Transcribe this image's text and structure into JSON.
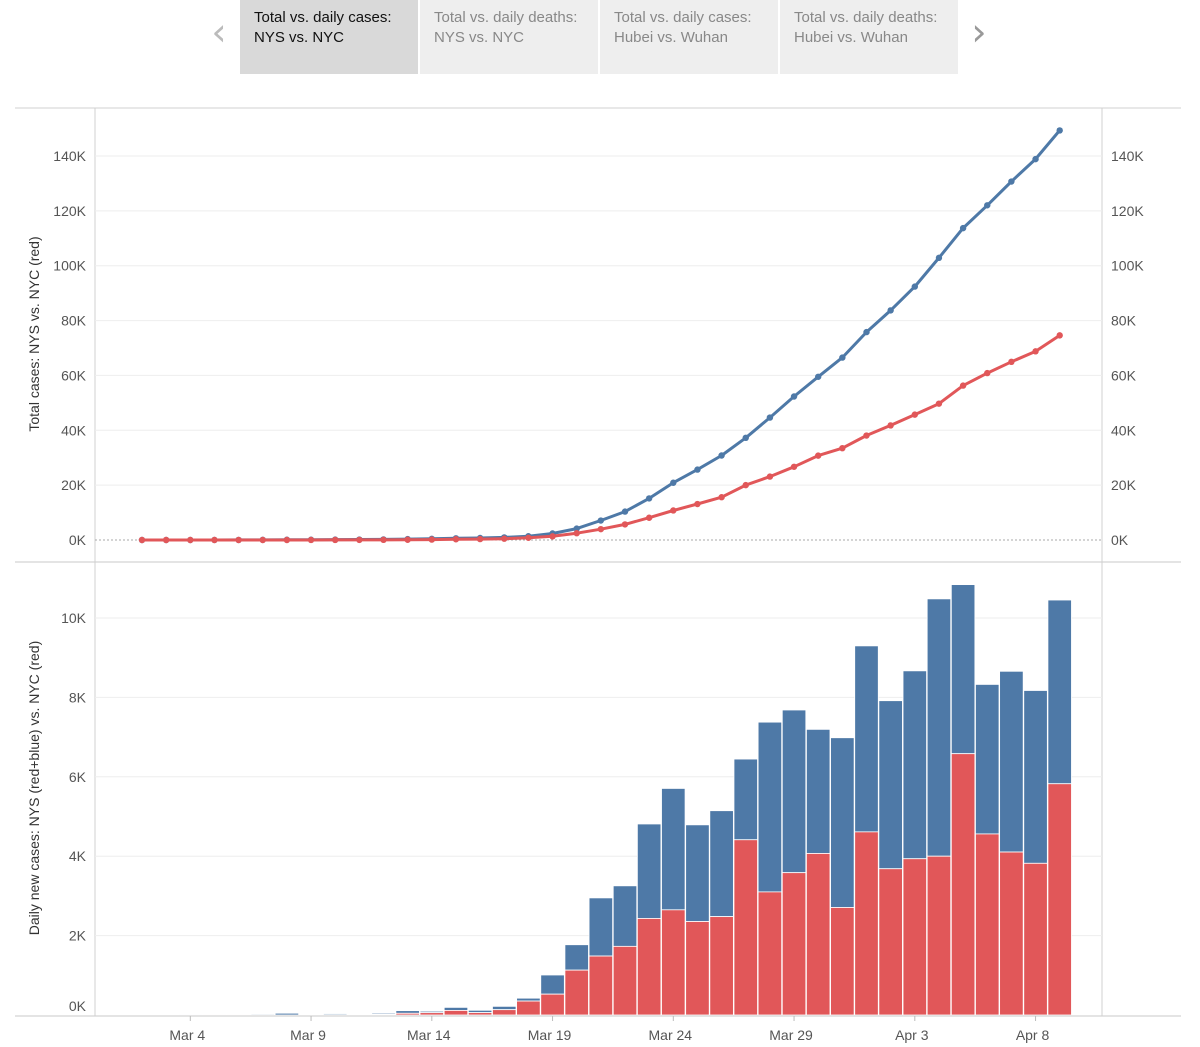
{
  "tabs": [
    {
      "line1": "Total vs. daily cases:",
      "line2": "NYS vs. NYC"
    },
    {
      "line1": "Total vs. daily deaths:",
      "line2": "NYS vs. NYC"
    },
    {
      "line1": "Total vs. daily cases:",
      "line2": "Hubei vs. Wuhan"
    },
    {
      "line1": "Total vs. daily deaths:",
      "line2": "Hubei vs. Wuhan"
    }
  ],
  "nav": {
    "prev_icon": "chevron-left-icon",
    "next_icon": "chevron-right-icon"
  },
  "colors": {
    "nys": "#4e79a7",
    "nyc": "#e15759",
    "grid": "#eeeeee"
  },
  "chart_data": [
    {
      "type": "line",
      "ylabel": "Total cases: NYS vs. NYC (red)",
      "y_ticks": [
        "0K",
        "20K",
        "40K",
        "60K",
        "80K",
        "100K",
        "120K",
        "140K"
      ],
      "y_tick_values": [
        0,
        20000,
        40000,
        60000,
        80000,
        100000,
        120000,
        140000
      ],
      "ylim": [
        0,
        155000
      ],
      "x_start": "2020-03-02",
      "series": [
        {
          "values": [
            1,
            1,
            2,
            11,
            22,
            44,
            89,
            106,
            142,
            173,
            217,
            326,
            421,
            613,
            732,
            950,
            1374,
            2382,
            4152,
            7102,
            10356,
            15168,
            20875,
            25665,
            30811,
            37258,
            44635,
            52318,
            59513,
            66497,
            75795,
            83712,
            92381,
            102863,
            113704,
            122031,
            130689,
            138863,
            149316
          ]
        },
        {
          "values": [
            0,
            0,
            0,
            2,
            4,
            4,
            4,
            12,
            19,
            36,
            52,
            95,
            154,
            269,
            329,
            463,
            814,
            1339,
            2469,
            3954,
            5683,
            8115,
            10764,
            13119,
            15597,
            20011,
            23112,
            26697,
            30766,
            33474,
            38087,
            41771,
            45707,
            49707,
            56289,
            60850,
            64955,
            68776,
            74601
          ]
        }
      ]
    },
    {
      "type": "bar",
      "ylabel": "Daily new cases: NYS (red+blue) vs. NYC (red)",
      "y_ticks": [
        "0K",
        "2K",
        "4K",
        "6K",
        "8K",
        "10K"
      ],
      "y_tick_values": [
        0,
        2000,
        4000,
        6000,
        8000,
        10000
      ],
      "ylim": [
        0,
        11200
      ],
      "x_ticks": [
        "Mar 4",
        "Mar 9",
        "Mar 14",
        "Mar 19",
        "Mar 24",
        "Mar 29",
        "Apr 3",
        "Apr 8"
      ],
      "x_tick_indices": [
        2,
        7,
        12,
        17,
        22,
        27,
        32,
        37
      ],
      "categories_start": "2020-03-02",
      "series": [
        {
          "values": [
            0,
            0,
            1,
            9,
            11,
            22,
            45,
            17,
            36,
            31,
            44,
            109,
            95,
            192,
            119,
            218,
            424,
            1008,
            1770,
            2950,
            3254,
            4812,
            5707,
            4790,
            5146,
            6447,
            7377,
            7683,
            7195,
            6984,
            9298,
            7917,
            8669,
            10482,
            10841,
            8327,
            8658,
            8174,
            10453
          ]
        },
        {
          "values": [
            0,
            0,
            0,
            2,
            2,
            0,
            0,
            8,
            7,
            17,
            16,
            43,
            59,
            115,
            60,
            134,
            351,
            525,
            1130,
            1485,
            1729,
            2432,
            2649,
            2355,
            2478,
            4414,
            3101,
            3585,
            4069,
            2708,
            4613,
            3684,
            3936,
            4000,
            6582,
            4561,
            4105,
            3821,
            5825
          ]
        }
      ]
    }
  ]
}
